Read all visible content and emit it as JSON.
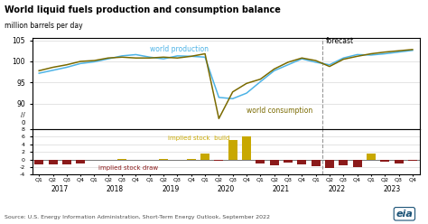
{
  "chart_data": [
    {
      "type": "line",
      "title": "World liquid fuels production and consumption balance",
      "subtitle": "million barrels per day",
      "series": [
        {
          "color": "#4db3e6",
          "values": [
            97.2,
            97.9,
            98.6,
            99.5,
            99.9,
            100.6,
            101.3,
            101.6,
            101.0,
            100.6,
            101.3,
            101.2,
            101.0,
            91.5,
            91.2,
            92.5,
            95.2,
            97.8,
            99.2,
            100.6,
            99.8,
            99.2,
            100.8,
            101.6,
            101.5,
            101.8,
            102.2,
            102.6
          ]
        },
        {
          "color": "#7a6a00",
          "values": [
            97.8,
            98.6,
            99.2,
            100.0,
            100.2,
            100.8,
            101.0,
            100.8,
            100.8,
            101.0,
            100.8,
            101.2,
            101.8,
            86.5,
            92.8,
            94.8,
            95.8,
            98.2,
            99.8,
            100.8,
            100.2,
            98.8,
            100.5,
            101.2,
            101.8,
            102.2,
            102.5,
            102.8
          ]
        }
      ],
      "ylim": [
        84,
        105.5
      ],
      "yticks": [
        90,
        95,
        100,
        105
      ],
      "grid": true,
      "tick_labels": "y",
      "forecast_x": 20.5,
      "annotations": [
        "world production",
        "world consumption",
        "forecast",
        "//",
        "0"
      ]
    },
    {
      "type": "bar",
      "categories": [
        "Q1",
        "Q2",
        "Q3",
        "Q4",
        "Q1",
        "Q2",
        "Q3",
        "Q4",
        "Q1",
        "Q2",
        "Q3",
        "Q4",
        "Q1",
        "Q2",
        "Q3",
        "Q4",
        "Q1",
        "Q2",
        "Q3",
        "Q4",
        "Q1",
        "Q2",
        "Q3",
        "Q4",
        "Q1",
        "Q2",
        "Q3",
        "Q4"
      ],
      "values": [
        -1.2,
        -1.3,
        -1.2,
        -1.1,
        -0.1,
        0.0,
        0.1,
        0.0,
        -0.2,
        0.1,
        -0.1,
        0.2,
        1.5,
        -0.3,
        5.2,
        6.0,
        -1.1,
        -1.4,
        -0.8,
        -1.2,
        -1.8,
        -2.2,
        -1.5,
        -2.0,
        1.5,
        -0.5,
        -1.0,
        -0.3
      ],
      "colors": [
        "#8b1a1a",
        "#8b1a1a",
        "#8b1a1a",
        "#8b1a1a",
        "#8b1a1a",
        "#c8a800",
        "#c8a800",
        "#c8a800",
        "#8b1a1a",
        "#c8a800",
        "#8b1a1a",
        "#c8a800",
        "#c8a800",
        "#8b1a1a",
        "#c8a800",
        "#c8a800",
        "#8b1a1a",
        "#8b1a1a",
        "#8b1a1a",
        "#8b1a1a",
        "#8b1a1a",
        "#8b1a1a",
        "#8b1a1a",
        "#8b1a1a",
        "#c8a800",
        "#8b1a1a",
        "#8b1a1a",
        "#8b1a1a"
      ],
      "ylim": [
        -4,
        8
      ],
      "yticks": [
        -4,
        -2,
        0,
        2,
        4,
        6,
        8
      ],
      "grid": true,
      "forecast_x": 20.5,
      "annotations": [
        "implied stock  build",
        "implied stock draw",
        "2017",
        "2018",
        "2019",
        "2020",
        "2021",
        "2022",
        "2023",
        "Source: U.S. Energy Information Administration, Short-Term Energy Outlook, September 2022",
        "eia"
      ]
    }
  ]
}
